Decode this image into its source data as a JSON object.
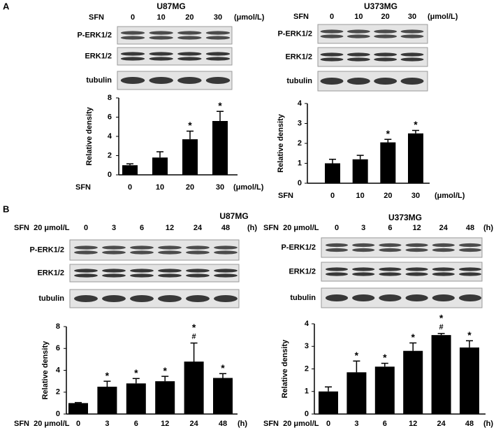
{
  "panel_labels": [
    "A",
    "B"
  ],
  "blot_rows": [
    "P-ERK1/2",
    "ERK1/2",
    "tubulin"
  ],
  "chart_data": [
    {
      "type": "bar",
      "title": "U87MG",
      "y_label": "Relative density",
      "x_label": "SFN",
      "x_unit": "(μmol/L)",
      "categories": [
        "0",
        "10",
        "20",
        "30"
      ],
      "values": [
        1,
        1.8,
        3.7,
        5.6
      ],
      "errors": [
        0.15,
        0.6,
        0.85,
        1.0
      ],
      "markers": [
        null,
        null,
        "*",
        "*"
      ],
      "markers2": [
        null,
        null,
        null,
        null
      ],
      "color": "#000000",
      "ylim": [
        0,
        8
      ],
      "yticks": [
        0,
        2,
        4,
        6,
        8
      ]
    },
    {
      "type": "bar",
      "title": "U373MG",
      "y_label": "Relative density",
      "x_label": "SFN",
      "x_unit": "(μmol/L)",
      "categories": [
        "0",
        "10",
        "20",
        "30"
      ],
      "values": [
        1,
        1.2,
        2.05,
        2.5
      ],
      "errors": [
        0.2,
        0.2,
        0.15,
        0.15
      ],
      "markers": [
        null,
        null,
        "*",
        "*"
      ],
      "markers2": [
        null,
        null,
        null,
        null
      ],
      "color": "#000000",
      "ylim": [
        0,
        4
      ],
      "yticks": [
        0,
        1,
        2,
        3,
        4
      ]
    },
    {
      "type": "bar",
      "title": "U87MG",
      "y_label": "Relative density",
      "x_label": "SFN  20 μmol/L",
      "x_unit": "(h)",
      "categories": [
        "0",
        "3",
        "6",
        "12",
        "24",
        "48"
      ],
      "values": [
        1,
        2.5,
        2.8,
        3.0,
        4.8,
        3.3
      ],
      "errors": [
        0.05,
        0.5,
        0.45,
        0.45,
        1.7,
        0.4
      ],
      "markers": [
        null,
        "*",
        "*",
        "*",
        "*",
        "*"
      ],
      "markers2": [
        null,
        null,
        null,
        null,
        "#",
        null
      ],
      "color": "#000000",
      "ylim": [
        0,
        8
      ],
      "yticks": [
        0,
        2,
        4,
        6,
        8
      ]
    },
    {
      "type": "bar",
      "title": "U373MG",
      "y_label": "Relative density",
      "x_label": "SFN  20 μmol/L",
      "x_unit": "(h)",
      "categories": [
        "0",
        "3",
        "6",
        "12",
        "24",
        "48"
      ],
      "values": [
        1,
        1.85,
        2.1,
        2.8,
        3.5,
        2.95
      ],
      "errors": [
        0.2,
        0.5,
        0.15,
        0.35,
        0.07,
        0.3
      ],
      "markers": [
        null,
        "*",
        "*",
        "*",
        "*",
        "*"
      ],
      "markers2": [
        null,
        null,
        null,
        null,
        "#",
        null
      ],
      "color": "#000000",
      "ylim": [
        0,
        4
      ],
      "yticks": [
        0,
        1,
        2,
        3,
        4
      ]
    }
  ]
}
